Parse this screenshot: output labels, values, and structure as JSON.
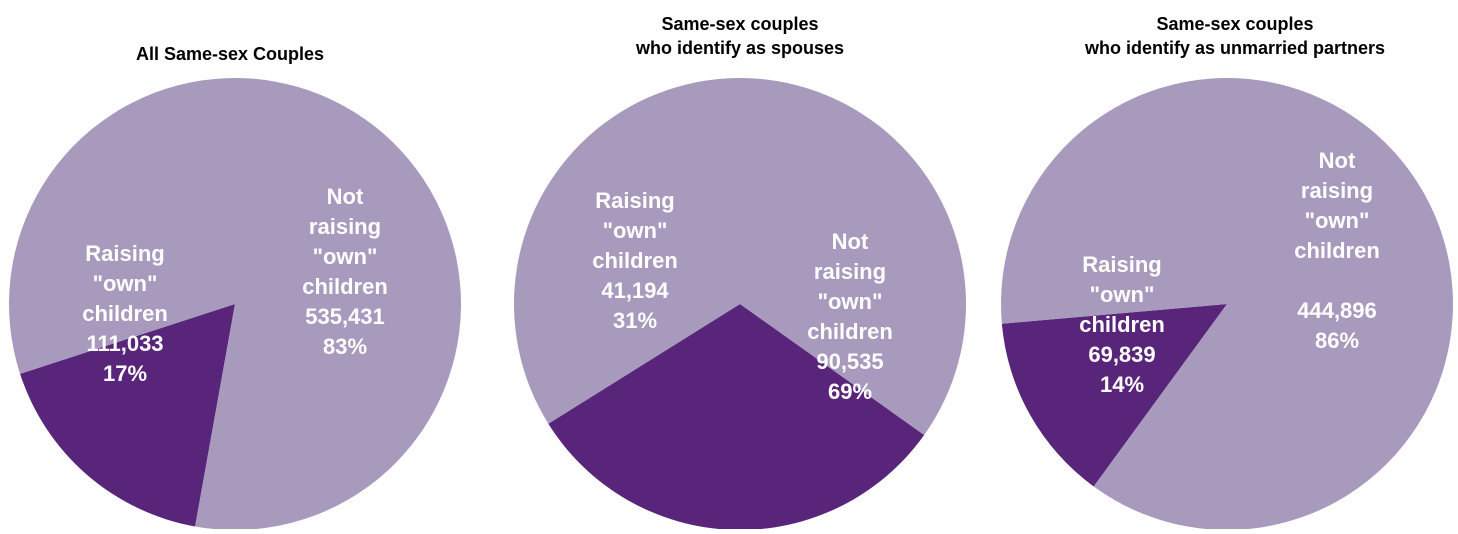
{
  "colors": {
    "raising": "#58257B",
    "not_raising": "#A89ABC",
    "background": "#FFFFFF"
  },
  "chart_data": [
    {
      "type": "pie",
      "title": "All Same-sex Couples",
      "slices": [
        {
          "label": [
            "Raising",
            "\"own\"",
            "children"
          ],
          "value": 111033,
          "value_text": "111,033",
          "percent": 17,
          "percent_text": "17%"
        },
        {
          "label": [
            "Not",
            "raising",
            "\"own\"",
            "children"
          ],
          "value": 535431,
          "value_text": "535,431",
          "percent": 83,
          "percent_text": "83%"
        }
      ]
    },
    {
      "type": "pie",
      "title": [
        "Same-sex couples",
        "who identify as spouses"
      ],
      "slices": [
        {
          "label": [
            "Raising",
            "\"own\"",
            "children"
          ],
          "value": 41194,
          "value_text": "41,194",
          "percent": 31,
          "percent_text": "31%"
        },
        {
          "label": [
            "Not",
            "raising",
            "\"own\"",
            "children"
          ],
          "value": 90535,
          "value_text": "90,535",
          "percent": 69,
          "percent_text": "69%"
        }
      ]
    },
    {
      "type": "pie",
      "title": [
        "Same-sex couples",
        "who identify as unmarried partners"
      ],
      "slices": [
        {
          "label": [
            "Raising",
            "\"own\"",
            "children"
          ],
          "value": 69839,
          "value_text": "69,839",
          "percent": 14,
          "percent_text": "14%"
        },
        {
          "label": [
            "Not",
            "raising",
            "\"own\"",
            "children"
          ],
          "value": 444896,
          "value_text": "444,896",
          "percent": 86,
          "percent_text": "86%"
        }
      ]
    }
  ]
}
